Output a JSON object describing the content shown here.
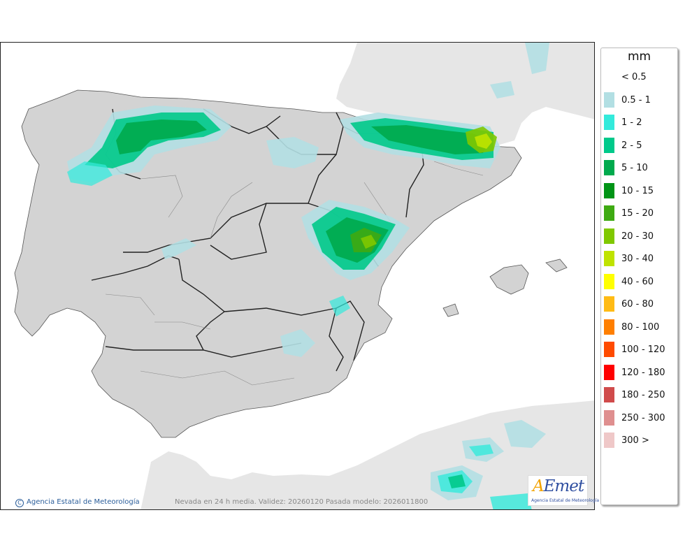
{
  "legend": {
    "unit": "mm",
    "items": [
      {
        "label": "< 0.5",
        "color": "#ffffff"
      },
      {
        "label": "0.5 - 1",
        "color": "#b2dfe3"
      },
      {
        "label": "1 - 2",
        "color": "#33eadb"
      },
      {
        "label": "2 - 5",
        "color": "#00c98a"
      },
      {
        "label": "5 - 10",
        "color": "#00aa4d"
      },
      {
        "label": "10 - 15",
        "color": "#009416"
      },
      {
        "label": "15 - 20",
        "color": "#3eaa12"
      },
      {
        "label": "20 - 30",
        "color": "#80c800"
      },
      {
        "label": "30 - 40",
        "color": "#bfe300"
      },
      {
        "label": "40 - 60",
        "color": "#ffff00"
      },
      {
        "label": "60 - 80",
        "color": "#ffbb15"
      },
      {
        "label": "80 - 100",
        "color": "#ff7f00"
      },
      {
        "label": "100 - 120",
        "color": "#ff4b00"
      },
      {
        "label": "120 - 180",
        "color": "#ff0000"
      },
      {
        "label": "180 - 250",
        "color": "#d04b4b"
      },
      {
        "label": "250 - 300",
        "color": "#df8f8f"
      },
      {
        "label": "300 >",
        "color": "#efc8c8"
      }
    ]
  },
  "footer": {
    "credit": "Agencia Estatal de Meteorología",
    "caption": "Nevada en 24 h media. Validez: 20260120 Pasada modelo: 2026011800"
  },
  "logo": {
    "brand_a": "A",
    "brand_rest": "Emet",
    "subtitle": "Agencia Estatal de Meteorología"
  },
  "colors": {
    "land": "#e6e6e6",
    "sea": "#ffffff",
    "peninsula": "#d3d3d3",
    "border": "#222222"
  }
}
